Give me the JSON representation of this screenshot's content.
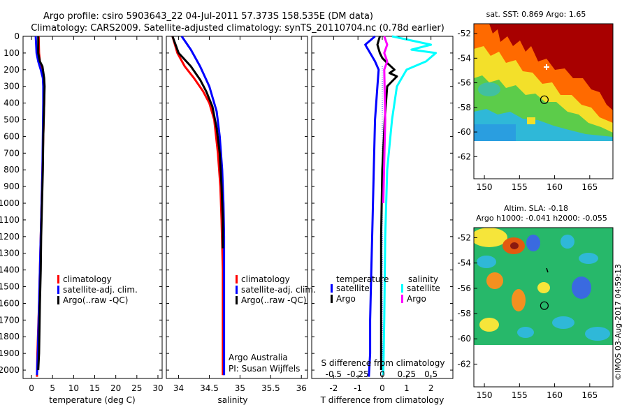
{
  "header": {
    "line1": "Argo profile: csiro 5903643_22 04-Jul-2011 57.373S 158.535E (DM data)",
    "line2": "Climatology: CARS2009. Satellite-adjusted climatology: synTS_20110704.nc (0.78d earlier)"
  },
  "colors": {
    "climatology": "#ff0000",
    "satellite": "#0000ff",
    "argo": "#000000",
    "cyan": "#00ffff",
    "magenta": "#ff00ff"
  },
  "chart_data": [
    {
      "type": "line",
      "xlabel": "temperature (deg C)",
      "xlim": [
        -2,
        31
      ],
      "xticks": [
        "0",
        "5",
        "10",
        "15",
        "20",
        "25",
        "30"
      ],
      "xtick_values": [
        0,
        5,
        10,
        15,
        20,
        25,
        30
      ],
      "ylim": [
        0,
        2050
      ],
      "yticks": [
        "0",
        "100",
        "200",
        "300",
        "400",
        "500",
        "600",
        "700",
        "800",
        "900",
        "1000",
        "1100",
        "1200",
        "1300",
        "1400",
        "1500",
        "1600",
        "1700",
        "1800",
        "1900",
        "2000"
      ],
      "legend": {
        "placement": "bottom-center",
        "items": [
          "climatology",
          "satellite-adj. clim.",
          "Argo(..raw -QC)"
        ]
      },
      "series": [
        {
          "name": "climatology",
          "color": "#ff0000",
          "x": [
            1.7,
            1.8,
            2.0,
            2.4,
            2.9,
            3.0,
            3.0,
            2.8,
            2.6,
            2.4,
            2.2,
            2.0,
            1.8,
            1.4,
            1.3
          ],
          "y": [
            0,
            100,
            150,
            200,
            250,
            300,
            400,
            600,
            800,
            1000,
            1200,
            1400,
            1600,
            1900,
            2040
          ]
        },
        {
          "name": "satellite-adj. clim.",
          "color": "#0000ff",
          "x": [
            1.0,
            1.2,
            1.6,
            2.2,
            2.7,
            2.8,
            2.8,
            2.7,
            2.6,
            2.4,
            2.2,
            2.0,
            1.8,
            1.5,
            1.3
          ],
          "y": [
            0,
            100,
            150,
            200,
            250,
            300,
            400,
            600,
            800,
            1000,
            1200,
            1400,
            1600,
            1900,
            2030
          ]
        },
        {
          "name": "Argo(..raw -QC)",
          "color": "#000000",
          "x": [
            1.6,
            1.6,
            2.0,
            2.6,
            3.0,
            3.1,
            3.0,
            2.8,
            2.7,
            2.5,
            2.3,
            2.2,
            2.0,
            1.8,
            1.6
          ],
          "y": [
            0,
            100,
            150,
            180,
            250,
            300,
            400,
            600,
            800,
            1000,
            1200,
            1400,
            1600,
            1900,
            2000
          ]
        }
      ]
    },
    {
      "type": "line",
      "xlabel": "salinity",
      "xlim": [
        33.8,
        36.1
      ],
      "xticks": [
        "34",
        "34.5",
        "35",
        "35.5",
        "36"
      ],
      "xtick_values": [
        34,
        34.5,
        35,
        35.5,
        36
      ],
      "ylim": [
        0,
        2050
      ],
      "legend": {
        "placement": "bottom-right",
        "items": [
          "climatology",
          "satellite-adj. clim.",
          "Argo(..raw -QC)"
        ]
      },
      "annotation": [
        "Argo Australia",
        "PI: Susan Wijffels"
      ],
      "series": [
        {
          "name": "climatology",
          "color": "#ff0000",
          "x": [
            33.9,
            33.98,
            34.1,
            34.25,
            34.4,
            34.5,
            34.58,
            34.64,
            34.68,
            34.7,
            34.72,
            34.72,
            34.72
          ],
          "y": [
            0,
            100,
            180,
            250,
            330,
            400,
            500,
            700,
            900,
            1100,
            1400,
            1700,
            2030
          ]
        },
        {
          "name": "satellite-adj. clim.",
          "color": "#0000ff",
          "x": [
            34.05,
            34.2,
            34.35,
            34.5,
            34.62,
            34.67,
            34.71,
            34.73,
            34.74,
            34.74,
            34.74,
            34.74
          ],
          "y": [
            0,
            80,
            180,
            300,
            450,
            600,
            800,
            1000,
            1200,
            1500,
            1800,
            2030
          ]
        },
        {
          "name": "Argo(..raw -QC)",
          "color": "#000000",
          "x": [
            33.9,
            34.0,
            34.2,
            34.35,
            34.45,
            34.55,
            34.62,
            34.67,
            34.7,
            34.72,
            34.72
          ],
          "y": [
            0,
            100,
            180,
            260,
            330,
            420,
            550,
            700,
            900,
            1100,
            1270
          ]
        }
      ]
    },
    {
      "type": "line",
      "xlabel": "T difference from climatology",
      "xlim": [
        -2.9,
        2.9
      ],
      "xticks": [
        "-2",
        "-1",
        "0",
        "1",
        "2"
      ],
      "xtick_values": [
        -2,
        -1,
        0,
        1,
        2
      ],
      "x2label": "S difference from climatology",
      "x2ticks": [
        "-0.5",
        "-0.25",
        "0",
        "0.25",
        "0.5"
      ],
      "x2tick_values": [
        -0.5,
        -0.25,
        0,
        0.25,
        0.5
      ],
      "ylim": [
        0,
        2050
      ],
      "legend": {
        "placement": "bottom",
        "temperature_title": "temperature",
        "salinity_title": "salinity",
        "items": [
          "satellite",
          "Argo",
          "satellite",
          "Argo"
        ]
      },
      "series": [
        {
          "name": "T satellite",
          "color": "#0000ff",
          "axis": "T",
          "x": [
            -0.3,
            -0.7,
            -0.5,
            -0.3,
            -0.15,
            -0.2,
            -0.3,
            -0.35,
            -0.4,
            -0.45,
            -0.5,
            -0.5,
            -0.55
          ],
          "y": [
            0,
            50,
            100,
            150,
            200,
            300,
            500,
            800,
            1100,
            1400,
            1700,
            1900,
            2040
          ]
        },
        {
          "name": "T Argo",
          "color": "#000000",
          "axis": "T",
          "x": [
            -0.1,
            -0.2,
            -0.1,
            0.0,
            0.2,
            0.5,
            0.3,
            0.6,
            0.4,
            0.2,
            0.1,
            0.0,
            -0.05,
            -0.05
          ],
          "y": [
            0,
            50,
            100,
            130,
            160,
            200,
            220,
            240,
            270,
            300,
            500,
            800,
            1200,
            2000
          ]
        },
        {
          "name": "S satellite",
          "color": "#00ffff",
          "axis": "S",
          "x": [
            0.1,
            0.5,
            0.3,
            0.55,
            0.45,
            0.25,
            0.15,
            0.1,
            0.05,
            0.03,
            0.02,
            0.01
          ],
          "y": [
            0,
            50,
            80,
            100,
            150,
            200,
            300,
            500,
            800,
            1200,
            1700,
            2030
          ]
        },
        {
          "name": "S Argo",
          "color": "#ff00ff",
          "axis": "S",
          "x": [
            0.02,
            0.05,
            0.02,
            0.05,
            0.02,
            0.03,
            0.01
          ],
          "y": [
            0,
            50,
            100,
            150,
            200,
            500,
            1000
          ]
        }
      ]
    },
    {
      "type": "heatmap",
      "title": "sat. SST: 0.869 Argo: 1.65",
      "xticks": [
        "150",
        "155",
        "160",
        "165"
      ],
      "xtick_values": [
        150,
        155,
        160,
        165
      ],
      "yticks": [
        "-52",
        "-54",
        "-56",
        "-58",
        "-60",
        "-62"
      ],
      "ytick_values": [
        -52,
        -54,
        -56,
        -58,
        -60,
        -62
      ],
      "xlim": [
        148.5,
        168.3
      ],
      "ylim": [
        -63.8,
        -51.2
      ],
      "data_bottom_lat": -60.2,
      "argo_position": {
        "lon": 158.535,
        "lat": -57.373
      }
    },
    {
      "type": "heatmap",
      "title": "Altim. SLA: -0.18",
      "subtitle": "Argo h1000: -0.041 h2000: -0.055",
      "xticks": [
        "150",
        "155",
        "160",
        "165"
      ],
      "xtick_values": [
        150,
        155,
        160,
        165
      ],
      "yticks": [
        "-52",
        "-54",
        "-56",
        "-58",
        "-60",
        "-62"
      ],
      "ytick_values": [
        -52,
        -54,
        -56,
        -58,
        -60,
        -62
      ],
      "xlim": [
        148.5,
        168.3
      ],
      "ylim": [
        -63.8,
        -51.2
      ],
      "data_bottom_lat": -60.2,
      "argo_position": {
        "lon": 158.535,
        "lat": -57.373
      }
    }
  ],
  "credit": "©IMOS 03-Aug-2017 04:59:13"
}
